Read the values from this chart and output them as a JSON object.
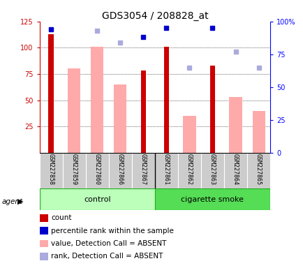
{
  "title": "GDS3054 / 208828_at",
  "samples": [
    "GSM227858",
    "GSM227859",
    "GSM227860",
    "GSM227866",
    "GSM227867",
    "GSM227861",
    "GSM227862",
    "GSM227863",
    "GSM227864",
    "GSM227865"
  ],
  "count": [
    113,
    null,
    null,
    null,
    78,
    101,
    null,
    83,
    null,
    null
  ],
  "percentile_rank": [
    94,
    null,
    null,
    null,
    88,
    95,
    null,
    95,
    null,
    null
  ],
  "value_absent": [
    null,
    80,
    101,
    65,
    null,
    null,
    35,
    null,
    53,
    40
  ],
  "rank_absent": [
    null,
    null,
    93,
    84,
    null,
    null,
    65,
    null,
    77,
    65
  ],
  "ylim_left": [
    0,
    125
  ],
  "ylim_right": [
    0,
    100
  ],
  "yticks_left": [
    25,
    50,
    75,
    100,
    125
  ],
  "yticks_right": [
    0,
    25,
    50,
    75,
    100
  ],
  "yticklabels_right": [
    "0",
    "25",
    "50",
    "75",
    "100%"
  ],
  "color_count": "#cc0000",
  "color_percentile": "#0000cc",
  "color_value_absent": "#ffaaaa",
  "color_rank_absent": "#aaaadd",
  "group_bg_control": "#bbffbb",
  "group_bg_smoke": "#55dd55",
  "title_fontsize": 10,
  "tick_fontsize": 7,
  "legend_fontsize": 7.5,
  "sample_fontsize": 6
}
